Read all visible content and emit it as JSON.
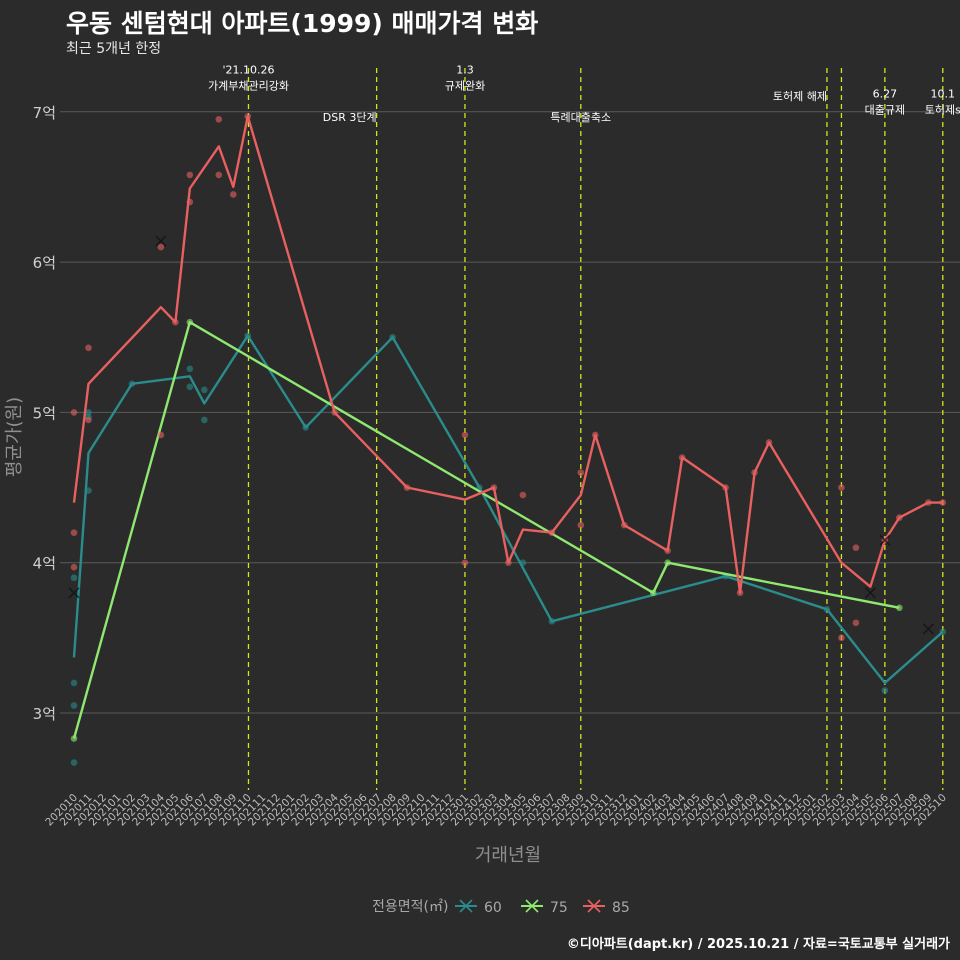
{
  "title": "우동 센텀현대 아파트(1999) 매매가격 변화",
  "subtitle": "최근 5개년 한정",
  "caption": "©디아파트(dapt.kr) / 2025.10.21 / 자료=국토교통부 실거래가",
  "colors": {
    "background": "#2b2b2b",
    "grid": "#5a5a5a",
    "event_line": "#d5e51e",
    "s60": "#2a8c8c",
    "s75": "#8fe870",
    "s85": "#e86060"
  },
  "chart_data": {
    "type": "line",
    "title": "우동 센텀현대 아파트(1999) 매매가격 변화",
    "xlabel": "거래년월",
    "ylabel": "평균가(원)",
    "ylim": [
      2.5,
      7.3
    ],
    "yticks": [
      3,
      4,
      5,
      6,
      7
    ],
    "ytick_labels": [
      "3억",
      "4억",
      "5억",
      "6억",
      "7억"
    ],
    "grid": true,
    "categories": [
      "202010",
      "202011",
      "202012",
      "202101",
      "202102",
      "202103",
      "202104",
      "202105",
      "202106",
      "202107",
      "202108",
      "202109",
      "202110",
      "202111",
      "202112",
      "202201",
      "202202",
      "202203",
      "202204",
      "202205",
      "202206",
      "202207",
      "202208",
      "202209",
      "202210",
      "202211",
      "202212",
      "202301",
      "202302",
      "202303",
      "202304",
      "202305",
      "202306",
      "202307",
      "202308",
      "202309",
      "202310",
      "202311",
      "202312",
      "202401",
      "202402",
      "202403",
      "202404",
      "202405",
      "202406",
      "202407",
      "202408",
      "202409",
      "202410",
      "202411",
      "202412",
      "202501",
      "202502",
      "202503",
      "202504",
      "202505",
      "202506",
      "202507",
      "202508",
      "202509",
      "202510"
    ],
    "legend": {
      "title": "전용면적(㎡)",
      "position": "bottom"
    },
    "series": [
      {
        "name": "60",
        "color": "#2a8c8c",
        "line": [
          [
            0,
            3.37
          ],
          [
            1,
            4.73
          ],
          [
            4,
            5.19
          ],
          [
            8,
            5.24
          ],
          [
            9,
            5.06
          ],
          [
            12,
            5.51
          ],
          [
            16,
            4.9
          ],
          [
            22,
            5.5
          ],
          [
            28,
            4.5
          ],
          [
            33,
            3.61
          ],
          [
            45,
            3.91
          ],
          [
            52,
            3.69
          ],
          [
            56,
            3.2
          ],
          [
            60,
            3.54
          ]
        ],
        "points": [
          [
            0,
            3.05
          ],
          [
            0,
            2.67
          ],
          [
            0,
            3.2
          ],
          [
            0,
            3.9
          ],
          [
            1,
            4.97
          ],
          [
            1,
            5.0
          ],
          [
            1,
            4.48
          ],
          [
            4,
            5.19
          ],
          [
            8,
            5.29
          ],
          [
            8,
            5.17
          ],
          [
            9,
            5.15
          ],
          [
            9,
            4.95
          ],
          [
            12,
            5.51
          ],
          [
            16,
            4.9
          ],
          [
            22,
            5.5
          ],
          [
            28,
            4.5
          ],
          [
            31,
            4.0
          ],
          [
            33,
            3.61
          ],
          [
            45,
            3.91
          ],
          [
            52,
            3.69
          ],
          [
            56,
            3.15
          ],
          [
            60,
            3.54
          ]
        ],
        "crosses": [
          [
            0,
            3.8
          ],
          [
            59,
            3.56
          ]
        ]
      },
      {
        "name": "75",
        "color": "#8fe870",
        "line": [
          [
            0,
            2.83
          ],
          [
            8,
            5.6
          ],
          [
            40,
            3.8
          ],
          [
            41,
            4.0
          ],
          [
            57,
            3.7
          ]
        ],
        "points": [
          [
            0,
            2.83
          ],
          [
            8,
            5.6
          ],
          [
            40,
            3.8
          ],
          [
            41,
            4.0
          ],
          [
            57,
            3.7
          ]
        ],
        "crosses": []
      },
      {
        "name": "85",
        "color": "#e86060",
        "line": [
          [
            0,
            4.4
          ],
          [
            1,
            5.19
          ],
          [
            6,
            5.7
          ],
          [
            7,
            5.6
          ],
          [
            8,
            6.49
          ],
          [
            10,
            6.77
          ],
          [
            11,
            6.5
          ],
          [
            12,
            6.97
          ],
          [
            18,
            5.0
          ],
          [
            23,
            4.5
          ],
          [
            27,
            4.42
          ],
          [
            29,
            4.5
          ],
          [
            30,
            4.0
          ],
          [
            31,
            4.22
          ],
          [
            33,
            4.2
          ],
          [
            35,
            4.45
          ],
          [
            36,
            4.85
          ],
          [
            38,
            4.25
          ],
          [
            41,
            4.08
          ],
          [
            42,
            4.7
          ],
          [
            45,
            4.5
          ],
          [
            46,
            3.8
          ],
          [
            47,
            4.6
          ],
          [
            48,
            4.8
          ],
          [
            53,
            4.0
          ],
          [
            55,
            3.84
          ],
          [
            56,
            4.15
          ],
          [
            57,
            4.3
          ],
          [
            59,
            4.4
          ],
          [
            60,
            4.4
          ]
        ],
        "points": [
          [
            0,
            5.0
          ],
          [
            0,
            4.2
          ],
          [
            0,
            3.97
          ],
          [
            1,
            5.43
          ],
          [
            1,
            4.95
          ],
          [
            6,
            4.85
          ],
          [
            6,
            6.1
          ],
          [
            7,
            5.6
          ],
          [
            8,
            6.58
          ],
          [
            8,
            6.4
          ],
          [
            10,
            6.58
          ],
          [
            10,
            6.95
          ],
          [
            11,
            6.45
          ],
          [
            12,
            6.97
          ],
          [
            18,
            5.0
          ],
          [
            23,
            4.5
          ],
          [
            27,
            4.85
          ],
          [
            27,
            4.0
          ],
          [
            29,
            4.5
          ],
          [
            30,
            4.0
          ],
          [
            31,
            4.45
          ],
          [
            33,
            4.2
          ],
          [
            35,
            4.6
          ],
          [
            35,
            4.25
          ],
          [
            36,
            4.85
          ],
          [
            38,
            4.25
          ],
          [
            41,
            4.08
          ],
          [
            42,
            4.7
          ],
          [
            45,
            4.5
          ],
          [
            46,
            3.8
          ],
          [
            47,
            4.6
          ],
          [
            48,
            4.8
          ],
          [
            53,
            4.5
          ],
          [
            53,
            3.5
          ],
          [
            54,
            4.1
          ],
          [
            54,
            3.6
          ],
          [
            56,
            4.15
          ],
          [
            57,
            4.3
          ],
          [
            59,
            4.4
          ],
          [
            60,
            4.4
          ]
        ],
        "crosses": [
          [
            6,
            6.14
          ],
          [
            55,
            3.8
          ],
          [
            56,
            4.15
          ]
        ]
      }
    ],
    "events": [
      {
        "x": 12.05,
        "lines": [
          "'21.10.26",
          "가계부채관리강화"
        ],
        "y": 7.15,
        "anchor": "middle"
      },
      {
        "x": 20.9,
        "lines": [
          "DSR 3단계"
        ],
        "y": 6.94,
        "anchor": "end"
      },
      {
        "x": 27.0,
        "lines": [
          "1.3",
          "규제완화"
        ],
        "y": 7.15,
        "anchor": "middle"
      },
      {
        "x": 35.0,
        "lines": [
          "특례대출축소"
        ],
        "y": 6.94,
        "anchor": "middle"
      },
      {
        "x": 52.0,
        "lines": [
          "토허제 해제"
        ],
        "y": 7.08,
        "anchor": "end"
      },
      {
        "x": 53.0,
        "lines": [],
        "y": 0,
        "anchor": "middle"
      },
      {
        "x": 56.0,
        "lines": [
          "6.27",
          "대출규제"
        ],
        "y": 6.99,
        "anchor": "middle"
      },
      {
        "x": 60.0,
        "lines": [
          "10.1",
          "토허제s"
        ],
        "y": 6.99,
        "anchor": "middle"
      }
    ]
  }
}
